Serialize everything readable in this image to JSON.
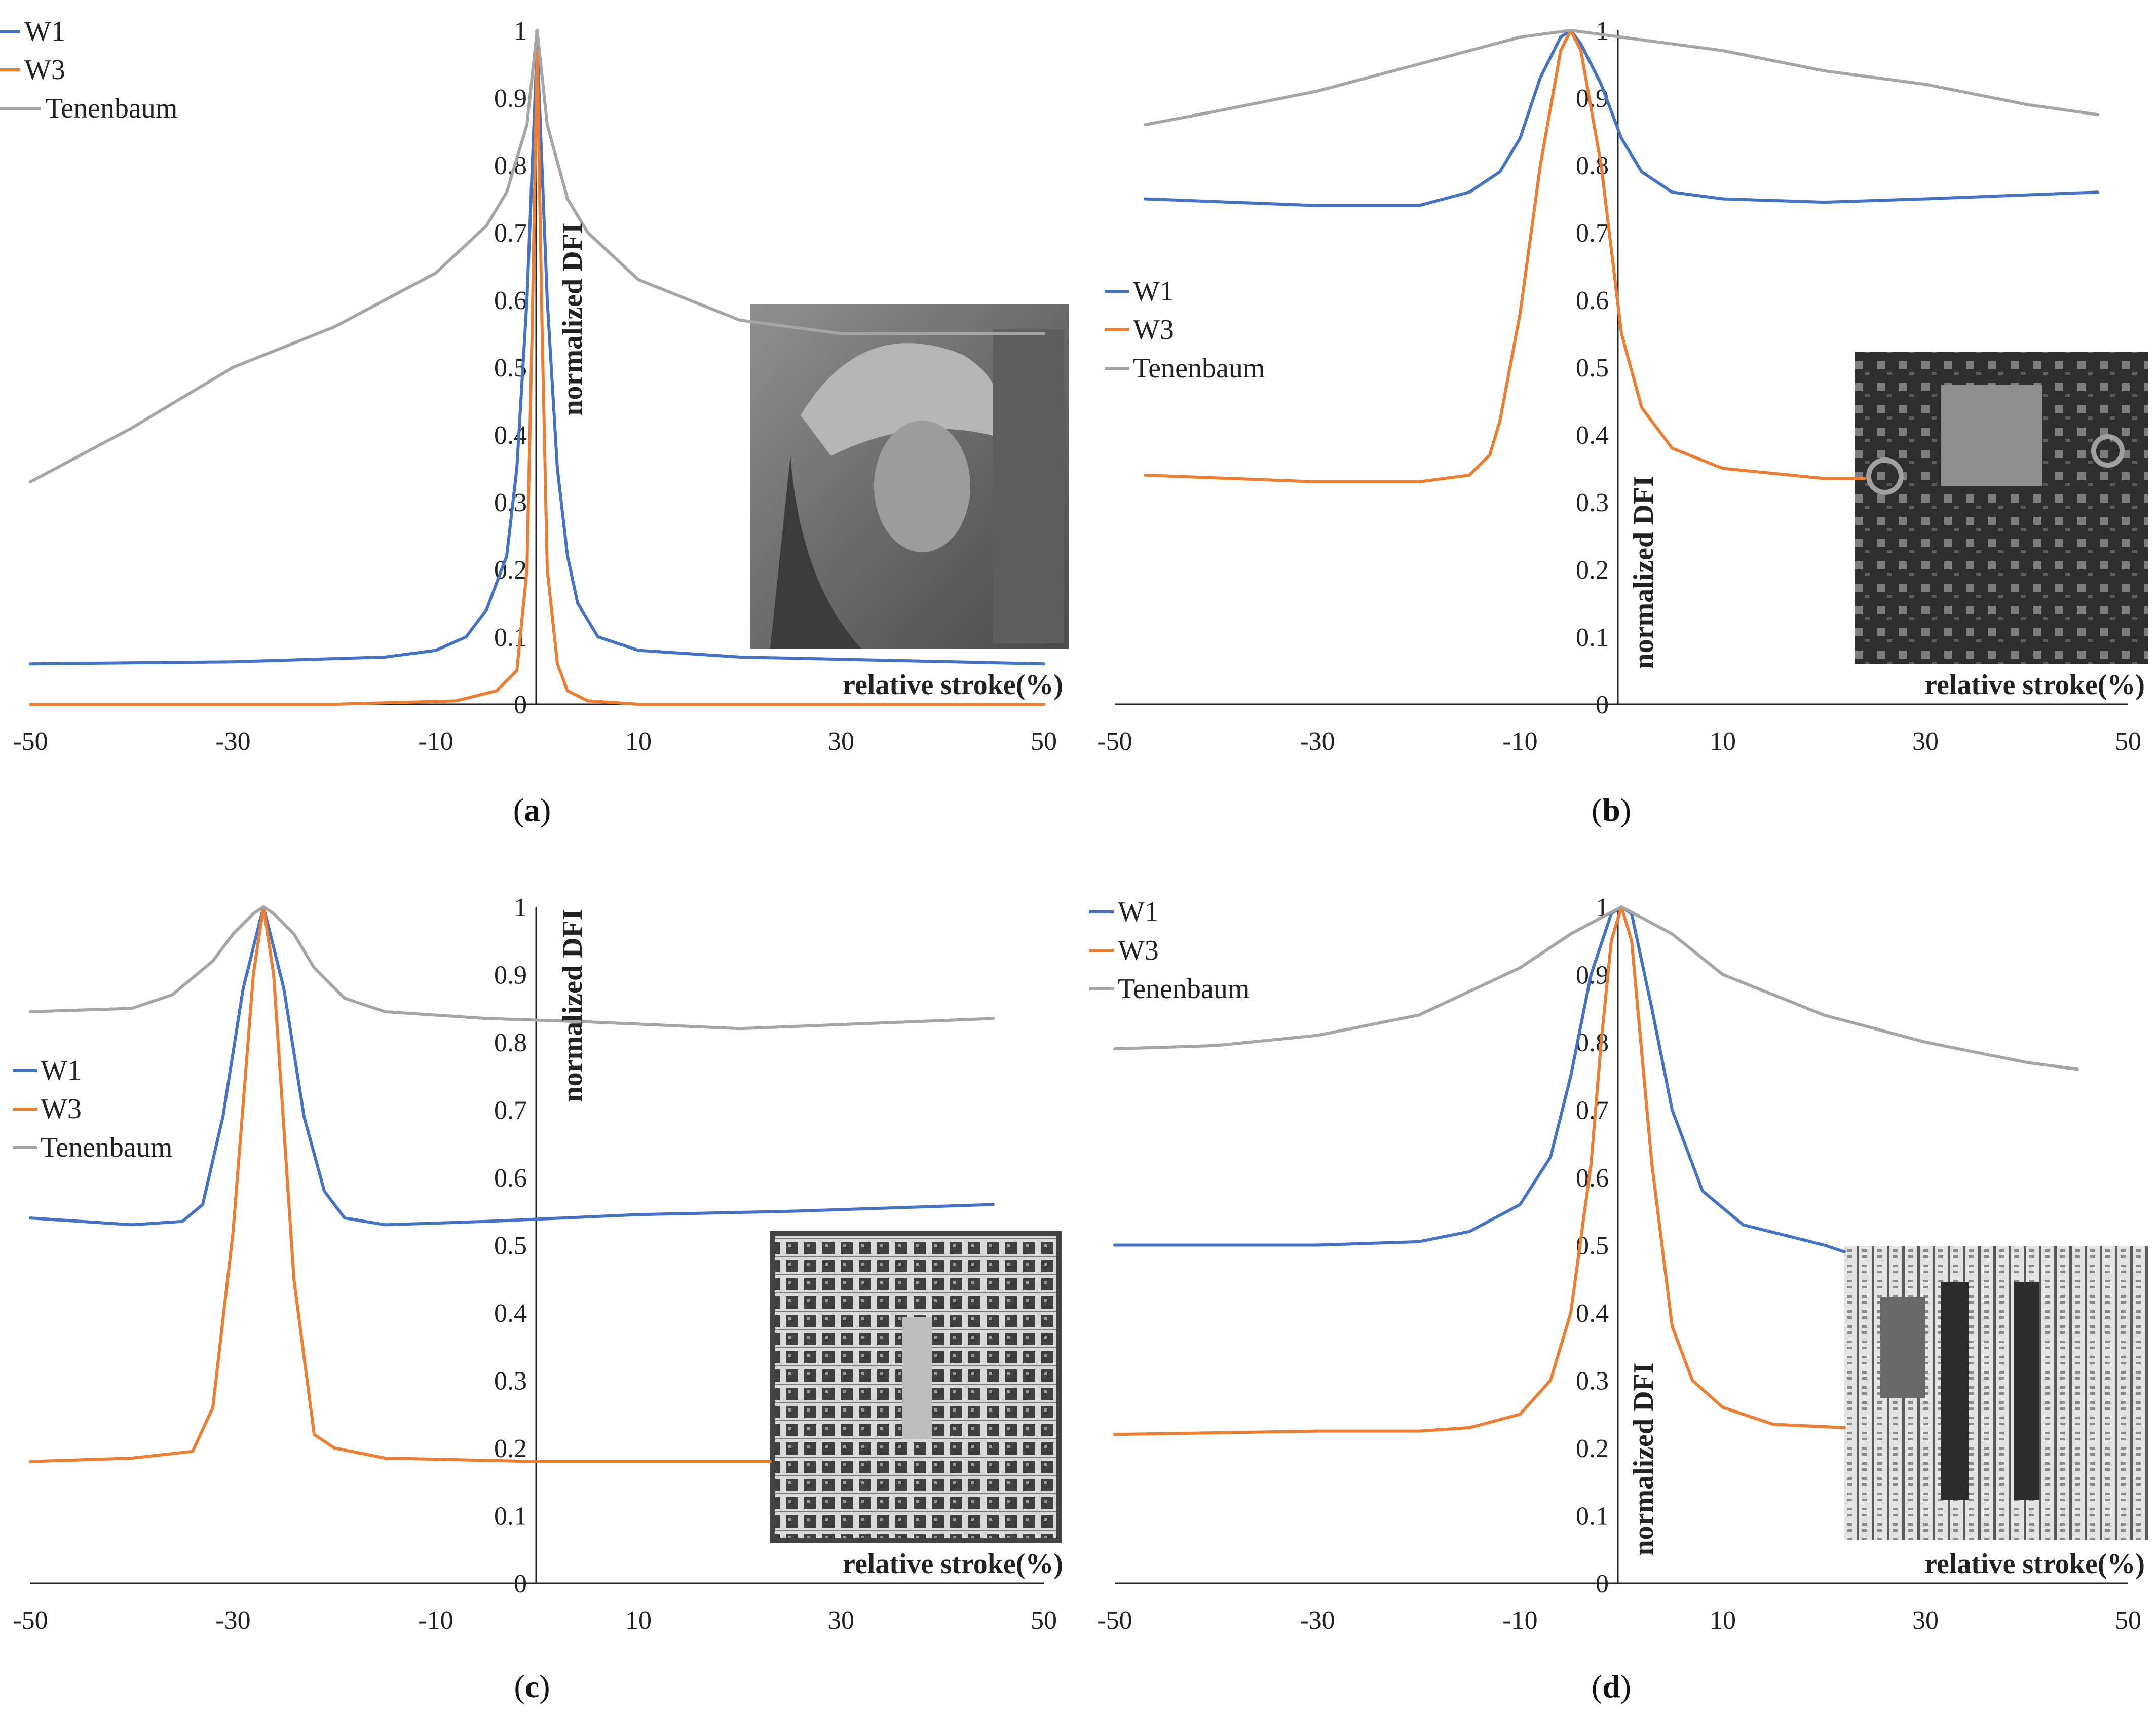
{
  "colors": {
    "W1": "#4472c4",
    "W3": "#ed7d31",
    "Tenenbaum": "#a5a5a5",
    "axis": "#222222"
  },
  "chart_data": [
    {
      "type": "line",
      "caption": "a",
      "xlabel": "relative stroke(%)",
      "ylabel": "normalized DFI",
      "xlim": [
        -50,
        50
      ],
      "ylim": [
        0,
        1
      ],
      "x_ticks": [
        "-50",
        "-30",
        "-10",
        "10",
        "30",
        "50"
      ],
      "y_ticks": [
        "0",
        "0.1",
        "0.2",
        "0.3",
        "0.4",
        "0.5",
        "0.6",
        "0.7",
        "0.8",
        "0.9",
        "1"
      ],
      "legend": [
        "W1",
        "W3",
        "Tenenbaum"
      ],
      "inset": "portrait photograph of woman in hat",
      "series": [
        {
          "name": "W1",
          "x": [
            -50,
            -30,
            -15,
            -10,
            -7,
            -5,
            -3,
            -2,
            -1,
            0,
            1,
            2,
            3,
            4,
            6,
            10,
            20,
            35,
            50
          ],
          "y": [
            0.06,
            0.063,
            0.07,
            0.08,
            0.1,
            0.14,
            0.22,
            0.35,
            0.6,
            0.98,
            0.6,
            0.35,
            0.22,
            0.15,
            0.1,
            0.08,
            0.07,
            0.065,
            0.06
          ]
        },
        {
          "name": "W3",
          "x": [
            -50,
            -20,
            -8,
            -4,
            -2,
            -1,
            -0.5,
            0,
            0.5,
            1,
            2,
            3,
            5,
            10,
            50
          ],
          "y": [
            0,
            0,
            0.005,
            0.02,
            0.05,
            0.2,
            0.55,
            0.97,
            0.55,
            0.2,
            0.06,
            0.02,
            0.005,
            0,
            0
          ]
        },
        {
          "name": "Tenenbaum",
          "x": [
            -50,
            -40,
            -30,
            -20,
            -10,
            -5,
            -3,
            -1,
            0,
            1,
            3,
            5,
            10,
            20,
            30,
            50
          ],
          "y": [
            0.33,
            0.41,
            0.5,
            0.56,
            0.64,
            0.71,
            0.76,
            0.86,
            1.0,
            0.86,
            0.75,
            0.7,
            0.63,
            0.57,
            0.55,
            0.55
          ]
        }
      ]
    },
    {
      "type": "line",
      "caption": "b",
      "xlabel": "relative stroke(%)",
      "ylabel": "normalized DFI",
      "xlim": [
        -50,
        50
      ],
      "ylim": [
        0,
        1
      ],
      "x_ticks": [
        "-50",
        "-30",
        "-10",
        "10",
        "30",
        "50"
      ],
      "y_ticks": [
        "0",
        "0.1",
        "0.2",
        "0.3",
        "0.4",
        "0.5",
        "0.6",
        "0.7",
        "0.8",
        "0.9",
        "1"
      ],
      "legend": [
        "W1",
        "W3",
        "Tenenbaum"
      ],
      "inset": "circuit board photograph",
      "series": [
        {
          "name": "W1",
          "x": [
            -47,
            -30,
            -20,
            -15,
            -12,
            -10,
            -8,
            -6,
            -5,
            -4,
            -2,
            0,
            2,
            5,
            10,
            20,
            30,
            47
          ],
          "y": [
            0.75,
            0.74,
            0.74,
            0.76,
            0.79,
            0.84,
            0.93,
            0.99,
            1.0,
            0.98,
            0.92,
            0.84,
            0.79,
            0.76,
            0.75,
            0.745,
            0.75,
            0.76
          ]
        },
        {
          "name": "W3",
          "x": [
            -47,
            -30,
            -20,
            -15,
            -13,
            -12,
            -10,
            -8,
            -6,
            -5,
            -4,
            -2,
            0,
            2,
            5,
            10,
            20,
            24
          ],
          "y": [
            0.34,
            0.33,
            0.33,
            0.34,
            0.37,
            0.42,
            0.58,
            0.8,
            0.97,
            1.0,
            0.97,
            0.8,
            0.55,
            0.44,
            0.38,
            0.35,
            0.335,
            0.335
          ]
        },
        {
          "name": "Tenenbaum",
          "x": [
            -47,
            -40,
            -30,
            -20,
            -10,
            -5,
            0,
            10,
            20,
            30,
            40,
            47
          ],
          "y": [
            0.86,
            0.88,
            0.91,
            0.95,
            0.99,
            1.0,
            0.99,
            0.97,
            0.94,
            0.92,
            0.89,
            0.875
          ]
        }
      ]
    },
    {
      "type": "line",
      "caption": "c",
      "xlabel": "relative stroke(%)",
      "ylabel": "normalized DFI",
      "xlim": [
        -50,
        50
      ],
      "ylim": [
        0,
        1
      ],
      "x_ticks": [
        "-50",
        "-30",
        "-10",
        "10",
        "30",
        "50"
      ],
      "y_ticks": [
        "0",
        "0.1",
        "0.2",
        "0.3",
        "0.4",
        "0.5",
        "0.6",
        "0.7",
        "0.8",
        "0.9",
        "1"
      ],
      "legend": [
        "W1",
        "W3",
        "Tenenbaum"
      ],
      "inset": "integrated circuit die micrograph",
      "series": [
        {
          "name": "W1",
          "x": [
            -50,
            -40,
            -35,
            -33,
            -31,
            -29,
            -27,
            -25,
            -23,
            -21,
            -19,
            -15,
            -5,
            10,
            25,
            45
          ],
          "y": [
            0.54,
            0.53,
            0.535,
            0.56,
            0.69,
            0.88,
            1.0,
            0.88,
            0.69,
            0.58,
            0.54,
            0.53,
            0.535,
            0.545,
            0.55,
            0.56
          ]
        },
        {
          "name": "W3",
          "x": [
            -50,
            -40,
            -34,
            -32,
            -30,
            -28,
            -27,
            -26,
            -24,
            -22,
            -20,
            -15,
            0,
            20,
            23
          ],
          "y": [
            0.18,
            0.185,
            0.195,
            0.26,
            0.52,
            0.9,
            1.0,
            0.9,
            0.45,
            0.22,
            0.2,
            0.185,
            0.18,
            0.18,
            0.18
          ]
        },
        {
          "name": "Tenenbaum",
          "x": [
            -50,
            -40,
            -36,
            -32,
            -30,
            -28,
            -27,
            -26,
            -24,
            -22,
            -19,
            -15,
            -5,
            5,
            20,
            45
          ],
          "y": [
            0.845,
            0.85,
            0.87,
            0.92,
            0.96,
            0.99,
            1.0,
            0.99,
            0.96,
            0.91,
            0.865,
            0.845,
            0.835,
            0.83,
            0.82,
            0.835
          ]
        }
      ]
    },
    {
      "type": "line",
      "caption": "d",
      "xlabel": "relative stroke(%)",
      "ylabel": "normalized DFI",
      "xlim": [
        -50,
        50
      ],
      "ylim": [
        0,
        1
      ],
      "x_ticks": [
        "-50",
        "-30",
        "-10",
        "10",
        "30",
        "50"
      ],
      "y_ticks": [
        "0",
        "0.1",
        "0.2",
        "0.3",
        "0.4",
        "0.5",
        "0.6",
        "0.7",
        "0.8",
        "0.9",
        "1"
      ],
      "legend": [
        "W1",
        "W3",
        "Tenenbaum"
      ],
      "inset": "integrated circuit die micrograph",
      "series": [
        {
          "name": "W1",
          "x": [
            -50,
            -30,
            -20,
            -15,
            -10,
            -7,
            -5,
            -3,
            -1,
            0,
            1,
            3,
            5,
            8,
            12,
            20,
            22
          ],
          "y": [
            0.5,
            0.5,
            0.505,
            0.52,
            0.56,
            0.63,
            0.75,
            0.9,
            0.99,
            1.0,
            0.99,
            0.85,
            0.7,
            0.58,
            0.53,
            0.5,
            0.49
          ]
        },
        {
          "name": "W3",
          "x": [
            -50,
            -30,
            -20,
            -15,
            -10,
            -7,
            -5,
            -3,
            -2,
            -1,
            0,
            1,
            3,
            5,
            7,
            10,
            15,
            22
          ],
          "y": [
            0.22,
            0.225,
            0.225,
            0.23,
            0.25,
            0.3,
            0.4,
            0.62,
            0.8,
            0.95,
            1.0,
            0.95,
            0.62,
            0.38,
            0.3,
            0.26,
            0.235,
            0.23
          ]
        },
        {
          "name": "Tenenbaum",
          "x": [
            -50,
            -40,
            -30,
            -20,
            -10,
            -5,
            0,
            5,
            10,
            20,
            30,
            40,
            45
          ],
          "y": [
            0.79,
            0.795,
            0.81,
            0.84,
            0.91,
            0.96,
            1.0,
            0.96,
            0.9,
            0.84,
            0.8,
            0.77,
            0.76
          ]
        }
      ]
    }
  ]
}
